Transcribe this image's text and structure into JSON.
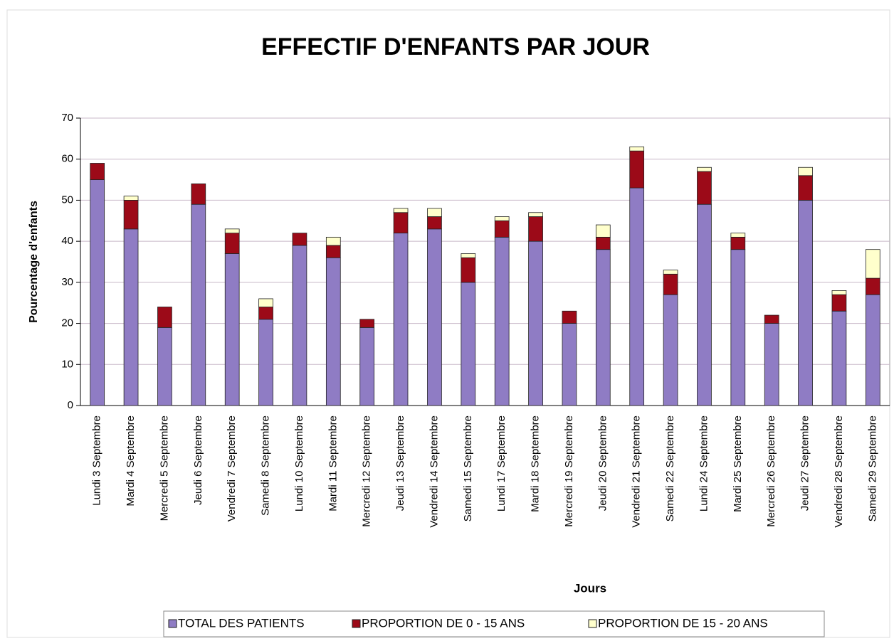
{
  "chart_data": {
    "type": "stacked_bar",
    "title": "EFFECTIF D'ENFANTS PAR JOUR",
    "x_label": "Jours",
    "y_label": "Pourcentage d'enfants",
    "categories": [
      "Lundi 3 Septembre",
      "Mardi 4 Septembre",
      "Mercredi 5 Septembre",
      "Jeudi 6 Septembre",
      "Vendredi 7 Septembre",
      "Samedi 8 Septembre",
      "Lundi 10 Septembre",
      "Mardi 11 Septembre",
      "Mercredi 12 Septembre",
      "Jeudi 13 Septembre",
      "Vendredi 14 Septembre",
      "Samedi 15 Septembre",
      "Lundi 17 Septembre",
      "Mardi 18 Septembre",
      "Mercredi 19 Septembre",
      "Jeudi 20 Septembre",
      "Vendredi 21 Septembre",
      "Samedi 22 Septembre",
      "Lundi 24 Septembre",
      "Mardi 25 Septembre",
      "Mercredi 26 Septembre",
      "Jeudi 27 Septembre",
      "Vendredi 28 Septembre",
      "Samedi 29 Septembre"
    ],
    "series": [
      {
        "name": "TOTAL DES PATIENTS",
        "color": "#8f7cc4",
        "values": [
          55,
          43,
          19,
          49,
          37,
          21,
          39,
          36,
          19,
          42,
          43,
          30,
          41,
          40,
          20,
          38,
          53,
          27,
          49,
          38,
          20,
          50,
          23,
          27
        ]
      },
      {
        "name": "PROPORTION DE 0 - 15 ANS",
        "color": "#9c0a18",
        "values": [
          4,
          7,
          5,
          5,
          5,
          3,
          3,
          3,
          2,
          5,
          3,
          6,
          4,
          6,
          3,
          3,
          9,
          5,
          8,
          3,
          2,
          6,
          4,
          4
        ]
      },
      {
        "name": "PROPORTION DE 15 - 20 ANS",
        "color": "#ffffcc",
        "values": [
          0,
          1,
          0,
          0,
          1,
          2,
          0,
          2,
          0,
          1,
          2,
          1,
          1,
          1,
          0,
          3,
          1,
          1,
          1,
          1,
          0,
          2,
          1,
          7
        ]
      }
    ],
    "ylim": [
      0,
      70
    ],
    "yticks": [
      0,
      10,
      20,
      30,
      40,
      50,
      60,
      70
    ],
    "grid": true,
    "legend": "bottom"
  }
}
